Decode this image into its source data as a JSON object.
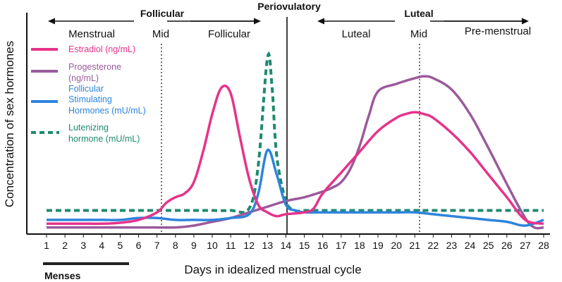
{
  "chart_data": {
    "type": "line",
    "title": "",
    "xlabel": "Days in idealized menstrual cycle",
    "ylabel": "Concentration of sex hormones",
    "xlim": [
      1,
      28
    ],
    "ylim": [
      0,
      100
    ],
    "x_ticks": [
      "1",
      "2",
      "3",
      "4",
      "5",
      "6",
      "7",
      "8",
      "9",
      "10",
      "11",
      "12",
      "13",
      "14",
      "15",
      "16",
      "17",
      "18",
      "19",
      "20",
      "21",
      "22",
      "23",
      "24",
      "25",
      "26",
      "27",
      "28"
    ],
    "phase_headers": [
      {
        "label": "Follicular",
        "from": 1,
        "to": 14
      },
      {
        "label": "Periovulatory",
        "at": 14
      },
      {
        "label": "Luteal",
        "from": 14,
        "to": 28
      }
    ],
    "sub_phases": [
      {
        "label": "Menstrual",
        "center": 4
      },
      {
        "label": "Mid",
        "at": 7
      },
      {
        "label": "Follicular",
        "center": 10.5
      },
      {
        "label": "Luteal",
        "center": 17.5
      },
      {
        "label": "Mid",
        "at": 21
      },
      {
        "label": "Pre-menstrual",
        "center": 25
      }
    ],
    "markers": [
      {
        "x": 7,
        "style": "dotted"
      },
      {
        "x": 14,
        "style": "solid"
      },
      {
        "x": 21,
        "style": "dotted"
      }
    ],
    "menses": {
      "label": "Menses",
      "from": 1,
      "to": 5.5
    },
    "series": [
      {
        "name": "Estradiol (ng/mL)",
        "color": "#e6338a",
        "dash": "solid",
        "x": [
          1,
          2,
          3,
          4,
          5,
          6,
          7,
          7.5,
          8,
          8.5,
          9,
          9.5,
          10,
          10.5,
          11,
          11.5,
          12,
          12.5,
          13,
          13.5,
          14,
          15,
          15.5,
          16,
          17,
          18,
          19,
          20,
          20.5,
          21,
          21.5,
          22,
          23,
          24,
          25,
          26,
          27,
          28
        ],
        "y": [
          4,
          4,
          4,
          4,
          4.5,
          6,
          10,
          15,
          18,
          20,
          26,
          42,
          62,
          76,
          73,
          50,
          28,
          14,
          10,
          8,
          9,
          10,
          12,
          20,
          31,
          42,
          53,
          60,
          62,
          63,
          62,
          60,
          52,
          42,
          30,
          18,
          6,
          4
        ]
      },
      {
        "name": "Progesterone (ng/mL)",
        "color": "#9b5a9c",
        "dash": "solid",
        "x": [
          1,
          2,
          3,
          4,
          5,
          6,
          7,
          8,
          9,
          10,
          11,
          12,
          13,
          14,
          15,
          16,
          16.5,
          17,
          17.5,
          18,
          18.5,
          19,
          20,
          21,
          21.5,
          22,
          23,
          24,
          25,
          26,
          27,
          27.5,
          28
        ],
        "y": [
          2,
          2,
          2,
          2,
          2,
          2,
          2,
          2,
          3,
          5,
          7,
          10,
          13,
          16,
          18,
          21,
          23,
          26,
          33,
          45,
          61,
          74,
          78,
          81,
          82,
          81,
          75,
          62,
          44,
          25,
          7,
          2,
          2
        ]
      },
      {
        "name": "Follicular Stimulating Hormones (mU/mL)",
        "color": "#2d84dc",
        "dash": "solid",
        "x": [
          1,
          2,
          3,
          4,
          5,
          6,
          7,
          8,
          9,
          10,
          11,
          12,
          12.5,
          13,
          13.5,
          14,
          14.5,
          15,
          16,
          17,
          18,
          19,
          20,
          21,
          22,
          23,
          24,
          25,
          26,
          27,
          28
        ],
        "y": [
          6,
          6,
          6,
          6,
          6,
          7,
          7,
          6,
          6,
          6,
          7,
          9,
          20,
          43,
          30,
          14,
          11,
          10,
          10,
          10,
          10,
          10,
          10,
          10,
          9,
          8,
          7,
          6,
          5,
          3,
          6
        ]
      },
      {
        "name": "Lutenizing hormone (mU/mL)",
        "color": "#1f8a70",
        "dash": "dashed",
        "x": [
          1,
          2,
          3,
          4,
          5,
          6,
          7,
          8,
          9,
          10,
          11,
          12,
          12.5,
          13,
          13.25,
          13.5,
          14,
          14.5,
          15,
          16,
          17,
          18,
          19,
          20,
          21,
          22,
          23,
          24,
          25,
          26,
          27,
          28
        ],
        "y": [
          11,
          11,
          11,
          11,
          11,
          11,
          11,
          11,
          11,
          11,
          11,
          12,
          35,
          92,
          76,
          40,
          16,
          11,
          11,
          11,
          11,
          11,
          11,
          11,
          11,
          11,
          11,
          11,
          11,
          11,
          11,
          11
        ]
      }
    ]
  },
  "legend": {
    "estradiol": [
      "Estradiol (ng/mL)"
    ],
    "progesterone": [
      "Progesterone",
      "(ng/mL)"
    ],
    "fsh": [
      "Follicular",
      "Stimulating",
      "Hormones (mU/mL)"
    ],
    "lh": [
      "Lutenizing",
      "hormone (mU/mL)"
    ]
  },
  "colors": {
    "estradiol": "#e6338a",
    "progesterone": "#9b5a9c",
    "fsh": "#2d84dc",
    "lh": "#1f8a70",
    "axis": "#111111"
  }
}
